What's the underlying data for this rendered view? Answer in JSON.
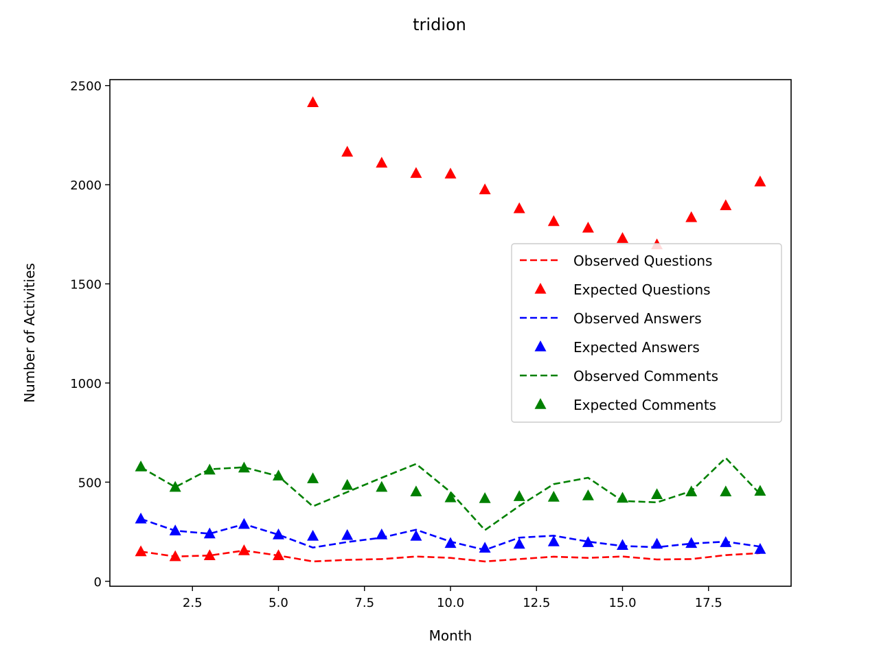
{
  "chart_data": {
    "type": "line",
    "title": "tridion",
    "xlabel": "Month",
    "ylabel": "Number of Activities",
    "xlim": [
      0.1,
      19.9
    ],
    "ylim": [
      -25,
      2530
    ],
    "xticks": [
      2.5,
      5.0,
      7.5,
      10.0,
      12.5,
      15.0,
      17.5
    ],
    "xtick_labels": [
      "2.5",
      "5.0",
      "7.5",
      "10.0",
      "12.5",
      "15.0",
      "17.5"
    ],
    "yticks": [
      0,
      500,
      1000,
      1500,
      2000,
      2500
    ],
    "ytick_labels": [
      "0",
      "500",
      "1000",
      "1500",
      "2000",
      "2500"
    ],
    "grid": false,
    "legend_position": "center-right",
    "x": [
      1,
      2,
      3,
      4,
      5,
      6,
      7,
      8,
      9,
      10,
      11,
      12,
      13,
      14,
      15,
      16,
      17,
      18,
      19
    ],
    "series": [
      {
        "name": "Observed Questions",
        "style": "dashed-line",
        "color": "#ff0000",
        "x": [
          1,
          2,
          3,
          4,
          5,
          6,
          7,
          8,
          9,
          10,
          11,
          12,
          13,
          14,
          15,
          16,
          17,
          18,
          19
        ],
        "values": [
          150,
          125,
          130,
          155,
          130,
          100,
          108,
          112,
          125,
          118,
          100,
          112,
          124,
          118,
          125,
          110,
          112,
          132,
          142
        ]
      },
      {
        "name": "Expected Questions",
        "style": "triangle-marker",
        "color": "#ff0000",
        "x": [
          1,
          2,
          3,
          4,
          5,
          6,
          7,
          8,
          9,
          10,
          11,
          12,
          13,
          14,
          15,
          16,
          17,
          18,
          19
        ],
        "values": [
          150,
          125,
          130,
          155,
          130,
          2415,
          2165,
          2110,
          2058,
          2055,
          1975,
          1880,
          1815,
          1782,
          1730,
          1698,
          1835,
          1895,
          2015
        ]
      },
      {
        "name": "Observed Answers",
        "style": "dashed-line",
        "color": "#0000ff",
        "x": [
          1,
          2,
          3,
          4,
          5,
          6,
          7,
          8,
          9,
          10,
          11,
          12,
          13,
          14,
          15,
          16,
          17,
          18,
          19
        ],
        "values": [
          315,
          255,
          240,
          288,
          235,
          170,
          198,
          220,
          260,
          200,
          158,
          220,
          230,
          200,
          178,
          172,
          190,
          200,
          175
        ]
      },
      {
        "name": "Expected Answers",
        "style": "triangle-marker",
        "color": "#0000ff",
        "x": [
          1,
          2,
          3,
          4,
          5,
          6,
          7,
          8,
          9,
          10,
          11,
          12,
          13,
          14,
          15,
          16,
          17,
          18,
          19
        ],
        "values": [
          315,
          255,
          240,
          288,
          235,
          228,
          232,
          235,
          228,
          192,
          168,
          188,
          200,
          196,
          182,
          188,
          192,
          196,
          162
        ]
      },
      {
        "name": "Observed Comments",
        "style": "dashed-line",
        "color": "#008000",
        "x": [
          1,
          2,
          3,
          4,
          5,
          6,
          7,
          8,
          9,
          10,
          11,
          12,
          13,
          14,
          15,
          16,
          17,
          18,
          19
        ],
        "values": [
          575,
          475,
          565,
          575,
          530,
          378,
          450,
          522,
          592,
          450,
          258,
          380,
          490,
          522,
          405,
          398,
          455,
          622,
          440
        ]
      },
      {
        "name": "Expected Comments",
        "style": "triangle-marker",
        "color": "#008000",
        "x": [
          1,
          2,
          3,
          4,
          5,
          6,
          7,
          8,
          9,
          10,
          11,
          12,
          13,
          14,
          15,
          16,
          17,
          18,
          19
        ],
        "values": [
          578,
          475,
          562,
          572,
          532,
          518,
          485,
          475,
          452,
          422,
          418,
          428,
          425,
          432,
          420,
          438,
          452,
          452,
          455
        ]
      }
    ]
  }
}
